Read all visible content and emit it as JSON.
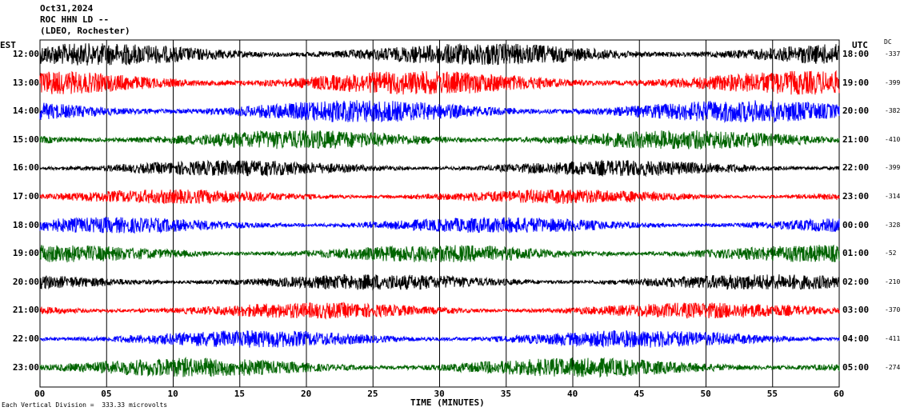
{
  "header": {
    "date": "Oct31,2024",
    "station": "ROC HHN LD --",
    "network": "(LDEO, Rochester)"
  },
  "axes": {
    "left_tz": "EST",
    "right_tz": "UTC",
    "dc_label": "DC",
    "x_label": "TIME (MINUTES)",
    "x_ticks": [
      "00",
      "05",
      "10",
      "15",
      "20",
      "25",
      "30",
      "35",
      "40",
      "45",
      "50",
      "55",
      "60"
    ]
  },
  "footnote": "Each Vertical Division =  333.33 microvolts",
  "chart_data": {
    "type": "line",
    "title": "",
    "xlabel": "TIME (MINUTES)",
    "ylabel": "",
    "xlim": [
      0,
      60
    ],
    "grid": true,
    "colors": {
      "cycle": [
        "#000000",
        "#ff0000",
        "#0000ff",
        "#006400"
      ]
    },
    "rows": [
      {
        "est": "12:00",
        "utc": "18:00",
        "dc": "-337",
        "color": "#000000"
      },
      {
        "est": "13:00",
        "utc": "19:00",
        "dc": "-399",
        "color": "#ff0000"
      },
      {
        "est": "14:00",
        "utc": "20:00",
        "dc": "-382",
        "color": "#0000ff"
      },
      {
        "est": "15:00",
        "utc": "21:00",
        "dc": "-410",
        "color": "#006400"
      },
      {
        "est": "16:00",
        "utc": "22:00",
        "dc": "-399",
        "color": "#000000"
      },
      {
        "est": "17:00",
        "utc": "23:00",
        "dc": "-314",
        "color": "#ff0000"
      },
      {
        "est": "18:00",
        "utc": "00:00",
        "dc": "-328",
        "color": "#0000ff"
      },
      {
        "est": "19:00",
        "utc": "01:00",
        "dc": "-52",
        "color": "#006400"
      },
      {
        "est": "20:00",
        "utc": "02:00",
        "dc": "-210",
        "color": "#000000"
      },
      {
        "est": "21:00",
        "utc": "03:00",
        "dc": "-370",
        "color": "#ff0000"
      },
      {
        "est": "22:00",
        "utc": "04:00",
        "dc": "-411",
        "color": "#0000ff"
      },
      {
        "est": "23:00",
        "utc": "05:00",
        "dc": "-274",
        "color": "#006400"
      }
    ],
    "vertical_division_microvolts": 333.33
  }
}
